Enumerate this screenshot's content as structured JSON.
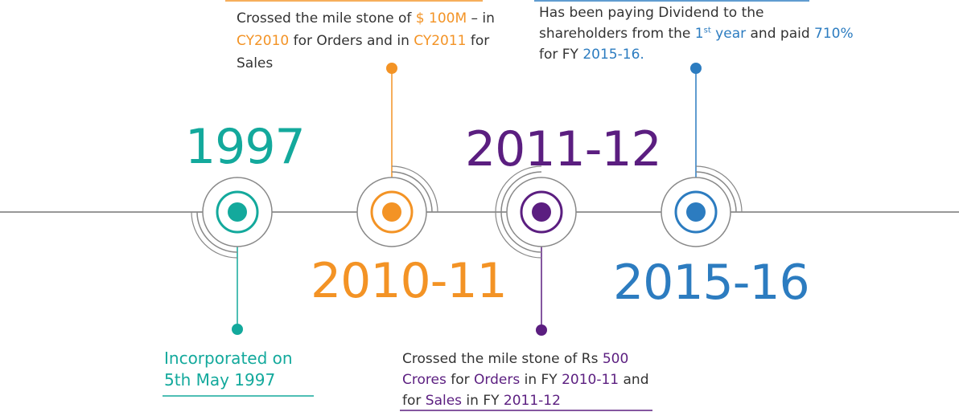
{
  "milestones": [
    {
      "year": "1997",
      "description": [
        "Incorporated on",
        "5th May 1997"
      ],
      "color": "#13a99c"
    },
    {
      "year": "2010-11",
      "description_parts": {
        "p1": "Crossed the mile stone of ",
        "h1": "$ 100M",
        "p2": " – in",
        "h2": "CY2010",
        "p3": " for Orders and in ",
        "h3": "CY2011",
        "p4": " for",
        "p5": "Sales"
      },
      "color": "#f39325"
    },
    {
      "year": "2011-12",
      "description_parts": {
        "p1": "Crossed the mile stone of Rs ",
        "h1": "500",
        "h2": "Crores",
        "p2": " for ",
        "h3": "Orders",
        "p3": " in FY ",
        "h4": "2010-11",
        "p4": " and",
        "p5": "for ",
        "h5": "Sales",
        "p6": " in FY ",
        "h6": "2011-12"
      },
      "color": "#5b1e80"
    },
    {
      "year": "2015-16",
      "description_parts": {
        "p1": "Has been paying Dividend to the",
        "p2": "shareholders from the ",
        "h1": "1",
        "sup": "st",
        "h2": " year",
        "p3": " and paid ",
        "h3": "710%",
        "p4": "for FY ",
        "h4": "2015-16."
      },
      "color": "#2c7cc0"
    }
  ],
  "colors": {
    "timeline": "#777777",
    "rings": "#888888",
    "teal": "#13a99c",
    "orange": "#f39325",
    "purple": "#5b1e80",
    "blue": "#2c7cc0"
  }
}
